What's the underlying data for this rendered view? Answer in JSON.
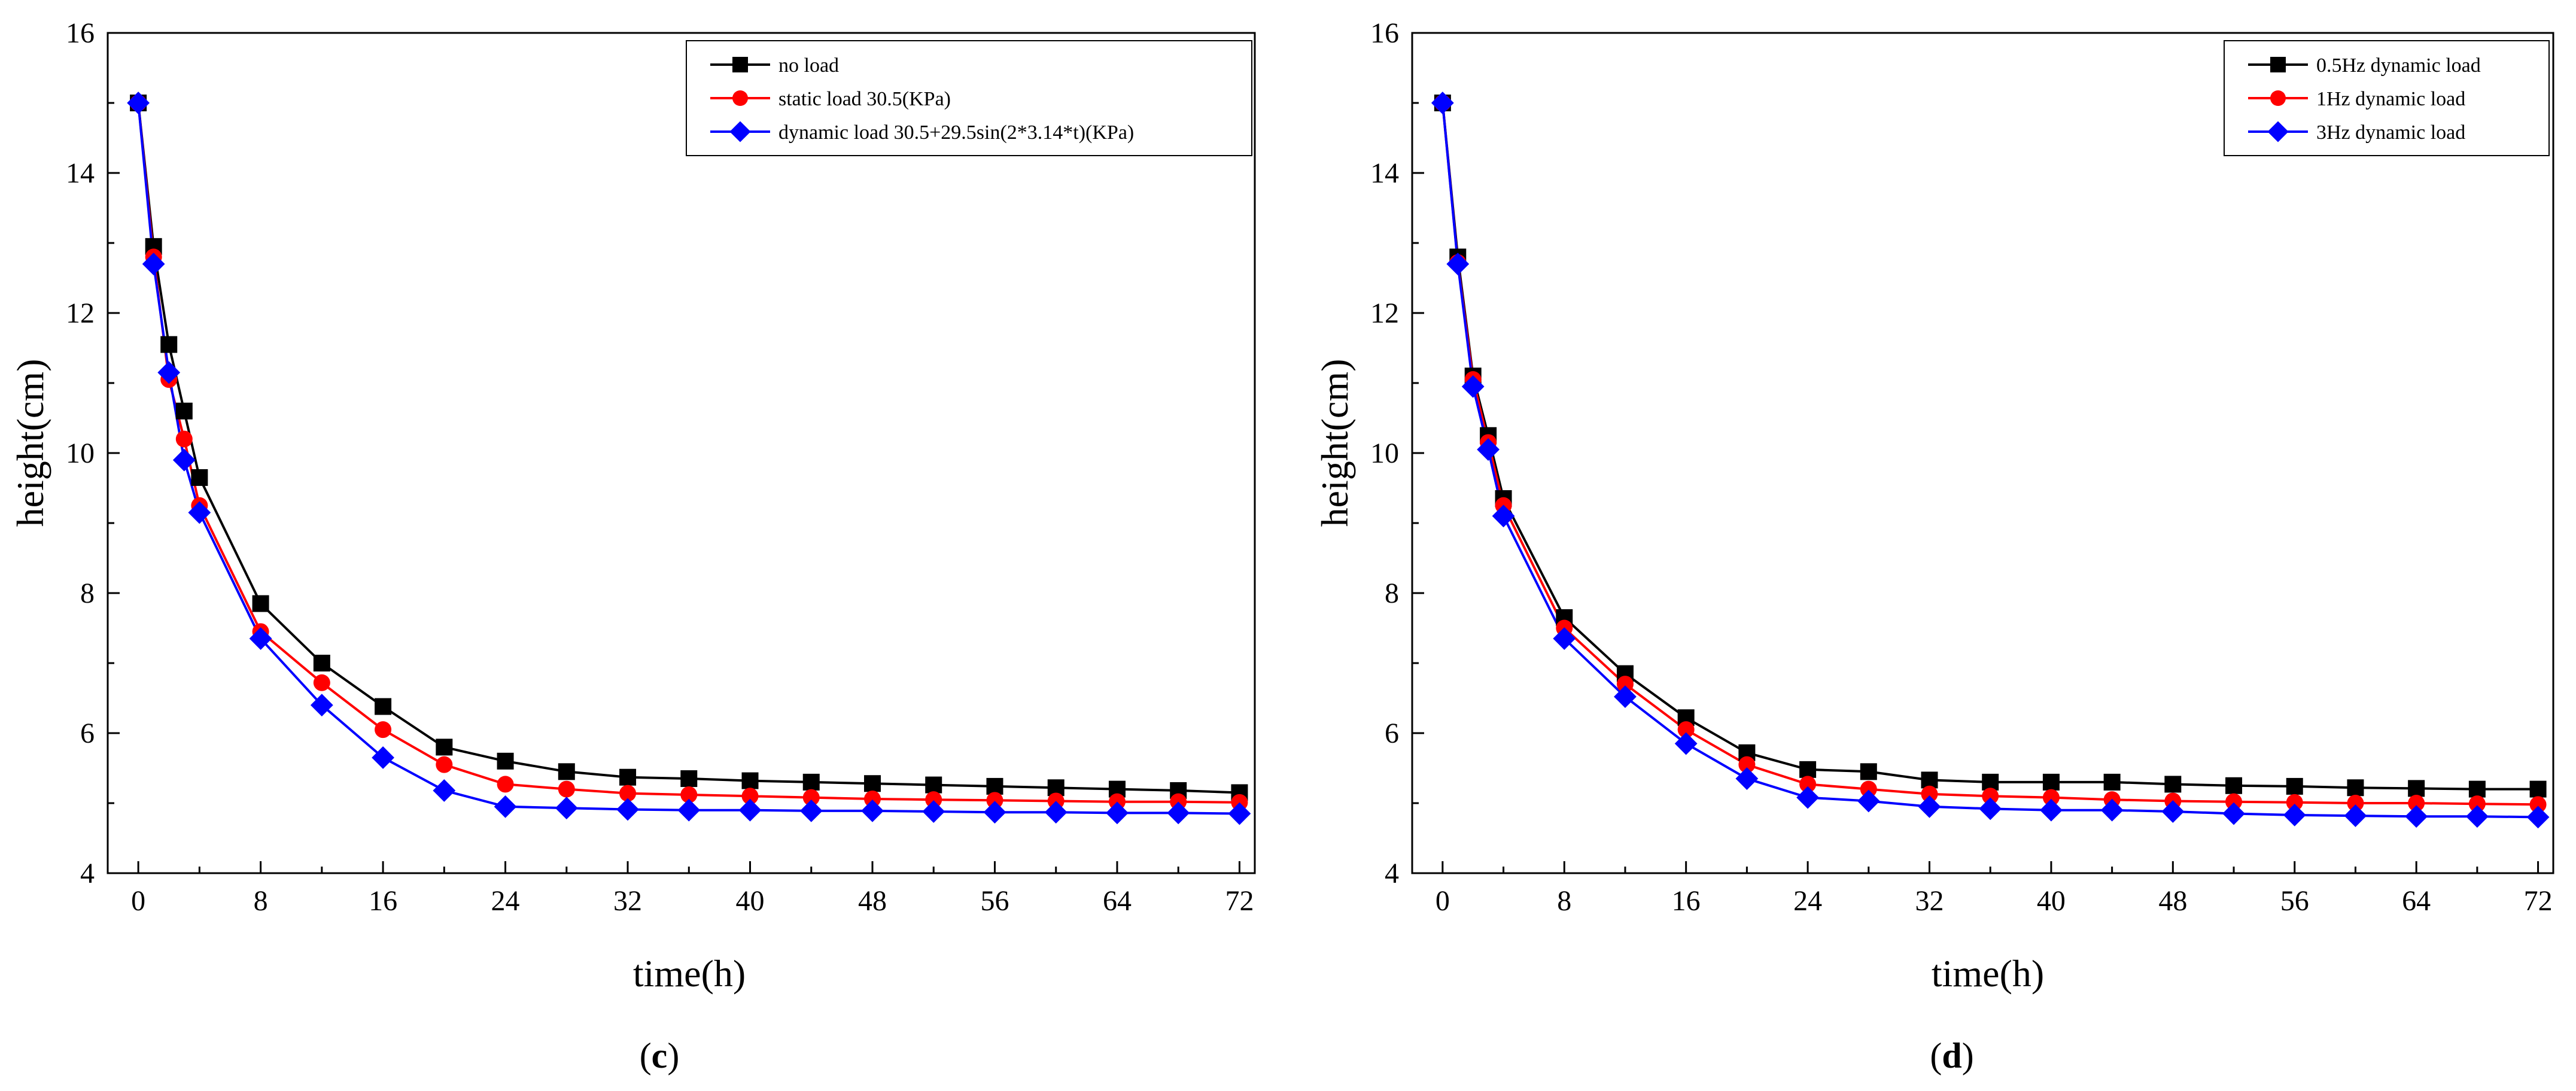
{
  "chart_data": [
    {
      "type": "line",
      "caption_open": "(",
      "caption_letter": "c",
      "caption_close": ")",
      "xlabel": "time(h)",
      "ylabel": "height(cm)",
      "xlim": [
        -2,
        73
      ],
      "ylim": [
        4,
        16
      ],
      "xticks": [
        0,
        8,
        16,
        24,
        32,
        40,
        48,
        56,
        64,
        72
      ],
      "yticks": [
        4,
        6,
        8,
        10,
        12,
        14,
        16
      ],
      "legend_position": "top-right",
      "x": [
        0,
        1,
        2,
        3,
        4,
        8,
        12,
        16,
        20,
        24,
        28,
        32,
        36,
        40,
        44,
        48,
        52,
        56,
        60,
        64,
        68,
        72
      ],
      "series": [
        {
          "name": "no load",
          "color": "#000000",
          "marker": "square",
          "values": [
            15.0,
            12.95,
            11.55,
            10.6,
            9.65,
            7.85,
            7.0,
            6.38,
            5.8,
            5.6,
            5.45,
            5.37,
            5.35,
            5.32,
            5.3,
            5.28,
            5.26,
            5.24,
            5.22,
            5.2,
            5.18,
            5.15
          ]
        },
        {
          "name": "static load 30.5(KPa)",
          "color": "#ff0000",
          "marker": "circle",
          "values": [
            15.0,
            12.8,
            11.05,
            10.2,
            9.25,
            7.45,
            6.72,
            6.05,
            5.55,
            5.27,
            5.2,
            5.14,
            5.12,
            5.1,
            5.08,
            5.06,
            5.05,
            5.04,
            5.03,
            5.02,
            5.02,
            5.01
          ]
        },
        {
          "name": "dynamic load 30.5+29.5sin(2*3.14*t)(KPa)",
          "color": "#0000ff",
          "marker": "diamond",
          "values": [
            15.0,
            12.7,
            11.15,
            9.9,
            9.15,
            7.35,
            6.4,
            5.65,
            5.18,
            4.95,
            4.93,
            4.91,
            4.9,
            4.9,
            4.89,
            4.89,
            4.88,
            4.87,
            4.87,
            4.86,
            4.86,
            4.85
          ]
        }
      ]
    },
    {
      "type": "line",
      "caption_open": "(",
      "caption_letter": "d",
      "caption_close": ")",
      "xlabel": "time(h)",
      "ylabel": "height(cm)",
      "xlim": [
        -2,
        73
      ],
      "ylim": [
        4,
        16
      ],
      "xticks": [
        0,
        8,
        16,
        24,
        32,
        40,
        48,
        56,
        64,
        72
      ],
      "yticks": [
        4,
        6,
        8,
        10,
        12,
        14,
        16
      ],
      "legend_position": "top-right",
      "x": [
        0,
        1,
        2,
        3,
        4,
        8,
        12,
        16,
        20,
        24,
        28,
        32,
        36,
        40,
        44,
        48,
        52,
        56,
        60,
        64,
        68,
        72
      ],
      "series": [
        {
          "name": "0.5Hz dynamic load",
          "color": "#000000",
          "marker": "square",
          "values": [
            15.0,
            12.8,
            11.1,
            10.25,
            9.35,
            7.65,
            6.85,
            6.22,
            5.72,
            5.48,
            5.45,
            5.33,
            5.3,
            5.3,
            5.3,
            5.27,
            5.25,
            5.24,
            5.22,
            5.21,
            5.2,
            5.2
          ]
        },
        {
          "name": "1Hz dynamic load",
          "color": "#ff0000",
          "marker": "circle",
          "values": [
            15.0,
            12.72,
            11.05,
            10.15,
            9.25,
            7.5,
            6.7,
            6.05,
            5.55,
            5.27,
            5.2,
            5.13,
            5.1,
            5.08,
            5.05,
            5.03,
            5.02,
            5.01,
            5.0,
            5.0,
            4.99,
            4.98
          ]
        },
        {
          "name": "3Hz dynamic load",
          "color": "#0000ff",
          "marker": "diamond",
          "values": [
            15.0,
            12.7,
            10.95,
            10.05,
            9.1,
            7.35,
            6.52,
            5.85,
            5.35,
            5.08,
            5.03,
            4.95,
            4.92,
            4.9,
            4.9,
            4.88,
            4.85,
            4.83,
            4.82,
            4.81,
            4.81,
            4.8
          ]
        }
      ]
    }
  ]
}
